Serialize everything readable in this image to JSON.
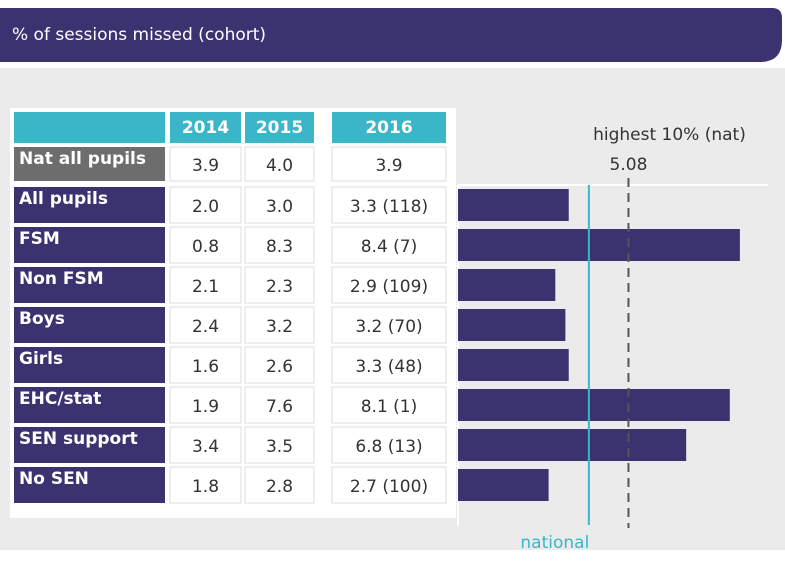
{
  "header": {
    "title": "% of sessions missed (cohort)"
  },
  "table": {
    "columns": [
      "2014",
      "2015",
      "2016"
    ],
    "rows": [
      {
        "label": "Nat all pupils",
        "cells": [
          "3.9",
          "4.0",
          "3.9"
        ]
      },
      {
        "label": "All pupils",
        "cells": [
          "2.0",
          "3.0",
          "3.3 (118)"
        ]
      },
      {
        "label": "FSM",
        "cells": [
          "0.8",
          "8.3",
          "8.4 (7)"
        ]
      },
      {
        "label": "Non FSM",
        "cells": [
          "2.1",
          "2.3",
          "2.9 (109)"
        ]
      },
      {
        "label": "Boys",
        "cells": [
          "2.4",
          "3.2",
          "3.2 (70)"
        ]
      },
      {
        "label": "Girls",
        "cells": [
          "1.6",
          "2.6",
          "3.3 (48)"
        ]
      },
      {
        "label": "EHC/stat",
        "cells": [
          "1.9",
          "7.6",
          "8.1 (1)"
        ]
      },
      {
        "label": "SEN support",
        "cells": [
          "3.4",
          "3.5",
          "6.8 (13)"
        ]
      },
      {
        "label": "No SEN",
        "cells": [
          "1.8",
          "2.8",
          "2.7 (100)"
        ]
      }
    ]
  },
  "chart_data": {
    "type": "bar",
    "orientation": "horizontal",
    "color": "#3b3370",
    "values": [
      3.3,
      8.4,
      2.9,
      3.2,
      3.3,
      8.1,
      6.8,
      2.7
    ],
    "xlim": [
      0,
      9
    ],
    "reference_lines": [
      {
        "label": "national",
        "value": 3.9,
        "color": "#3bb5c8",
        "style": "solid"
      },
      {
        "label": "highest 10% (nat)",
        "value": 5.08,
        "color": "#555555",
        "style": "dashed"
      }
    ]
  }
}
